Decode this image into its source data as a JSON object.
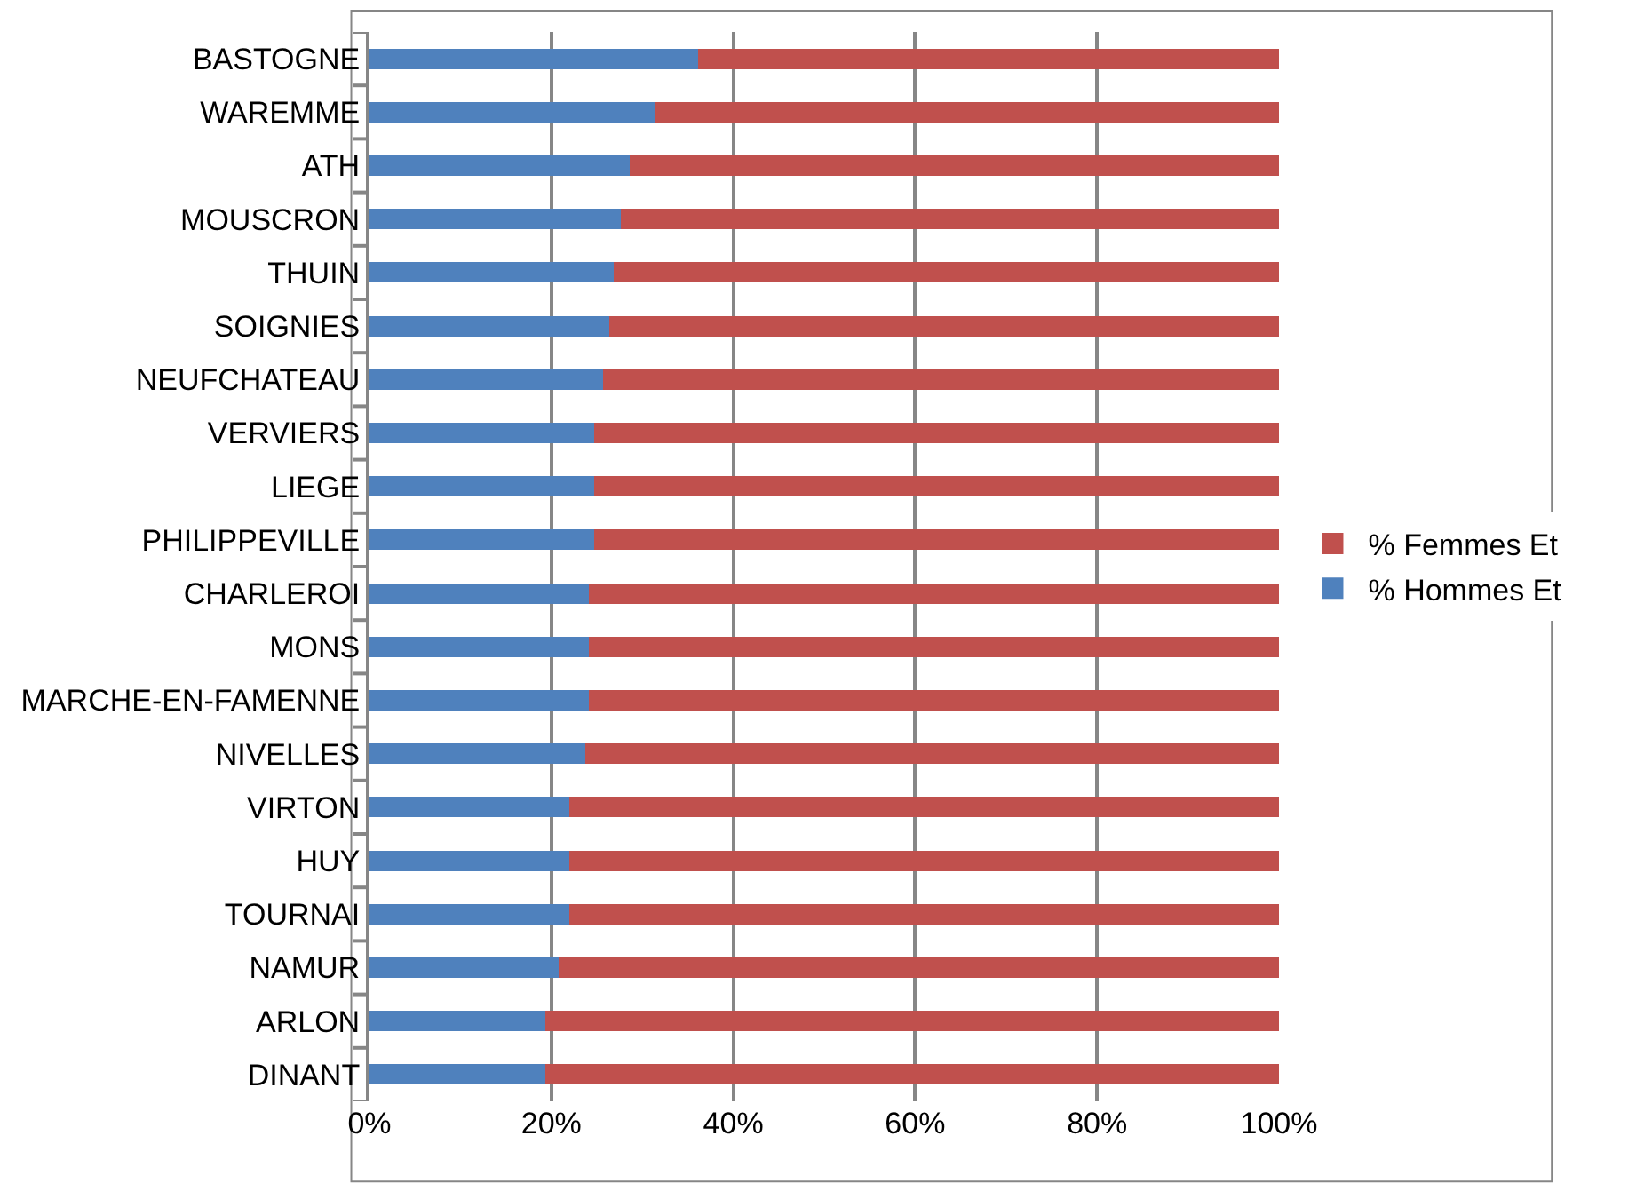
{
  "chart_data": {
    "type": "bar",
    "orientation": "horizontal",
    "stacked": true,
    "categories": [
      "BASTOGNE",
      "WAREMME",
      "ATH",
      "MOUSCRON",
      "THUIN",
      "SOIGNIES",
      "NEUFCHATEAU",
      "VERVIERS",
      "LIEGE",
      "PHILIPPEVILLE",
      "CHARLEROI",
      "MONS",
      "MARCHE-EN-FAMENNE",
      "NIVELLES",
      "VIRTON",
      "HUY",
      "TOURNAI",
      "NAMUR",
      "ARLON",
      "DINANT"
    ],
    "series": [
      {
        "name": "% Hommes Et",
        "color": "#4f81bd",
        "values": [
          36.1,
          31.3,
          28.6,
          27.6,
          26.9,
          26.4,
          25.7,
          24.7,
          24.7,
          24.7,
          24.1,
          24.1,
          24.1,
          23.7,
          22.0,
          22.0,
          22.0,
          20.8,
          19.3,
          19.3
        ]
      },
      {
        "name": "% Femmes Et",
        "color": "#c0504d",
        "values": [
          63.9,
          68.7,
          71.4,
          72.4,
          73.1,
          73.6,
          74.3,
          75.3,
          75.3,
          75.3,
          75.9,
          75.9,
          75.9,
          76.3,
          78.0,
          78.0,
          78.0,
          79.2,
          80.7,
          80.7
        ]
      }
    ],
    "xlim": [
      0,
      100
    ],
    "xticks": [
      {
        "value": 0,
        "label": "0%"
      },
      {
        "value": 20,
        "label": "20%"
      },
      {
        "value": 40,
        "label": "40%"
      },
      {
        "value": 60,
        "label": "60%"
      },
      {
        "value": 80,
        "label": "80%"
      },
      {
        "value": 100,
        "label": "100%"
      }
    ],
    "grid": "x",
    "legend": "right"
  }
}
